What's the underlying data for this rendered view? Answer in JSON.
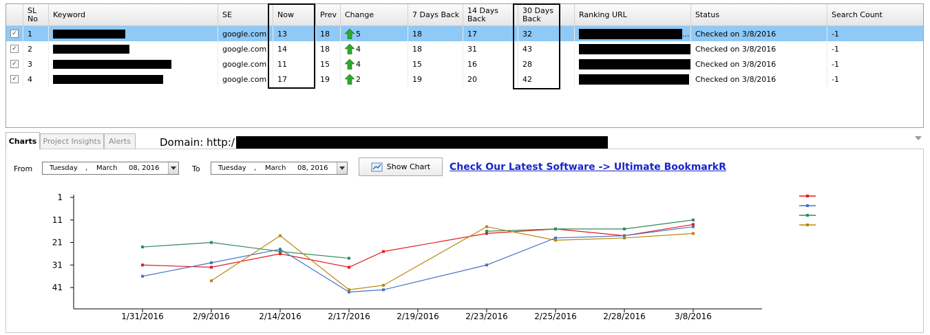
{
  "grid": {
    "columns": [
      {
        "key": "check",
        "label": ""
      },
      {
        "key": "sl",
        "label": "SL No"
      },
      {
        "key": "keyword",
        "label": "Keyword"
      },
      {
        "key": "se",
        "label": "SE"
      },
      {
        "key": "now",
        "label": "Now"
      },
      {
        "key": "prev",
        "label": "Prev"
      },
      {
        "key": "change",
        "label": "Change"
      },
      {
        "key": "d7",
        "label": "7 Days Back"
      },
      {
        "key": "d14",
        "label": "14 Days Back"
      },
      {
        "key": "d30",
        "label": "30 Days Back"
      },
      {
        "key": "url",
        "label": "Ranking URL"
      },
      {
        "key": "status",
        "label": "Status"
      },
      {
        "key": "search_count",
        "label": "Search Count"
      }
    ],
    "rows": [
      {
        "checked": true,
        "selected": true,
        "sl": "1",
        "se": "google.com",
        "now": "13",
        "prev": "18",
        "change": "5",
        "d7": "18",
        "d14": "17",
        "d30": "32",
        "url_suffix": "...",
        "status": "Checked on 3/8/2016",
        "search_count": "-1"
      },
      {
        "checked": true,
        "selected": false,
        "sl": "2",
        "se": "google.com",
        "now": "14",
        "prev": "18",
        "change": "4",
        "d7": "18",
        "d14": "31",
        "d30": "43",
        "url_suffix": "",
        "status": "Checked on 3/8/2016",
        "search_count": "-1"
      },
      {
        "checked": true,
        "selected": false,
        "sl": "3",
        "se": "google.com",
        "now": "11",
        "prev": "15",
        "change": "4",
        "d7": "15",
        "d14": "16",
        "d30": "28",
        "url_suffix": "",
        "status": "Checked on 3/8/2016",
        "search_count": "-1"
      },
      {
        "checked": true,
        "selected": false,
        "sl": "4",
        "se": "google.com",
        "now": "17",
        "prev": "19",
        "change": "2",
        "d7": "19",
        "d14": "20",
        "d30": "42",
        "url_suffix": "",
        "status": "Checked on 3/8/2016",
        "search_count": "-1"
      }
    ],
    "check_glyph": "✓",
    "change_arrow_color": "#2fa82f"
  },
  "tabs": [
    {
      "label": "Charts",
      "active": true
    },
    {
      "label": "Project Insights",
      "active": false
    },
    {
      "label": "Alerts",
      "active": false
    }
  ],
  "domain_label": "Domain: http:/",
  "filter": {
    "from_label": "From",
    "to_label": "To",
    "from_date": {
      "weekday": "Tuesday",
      "sep": ",",
      "month": "March",
      "day_year": "08, 2016"
    },
    "to_date": {
      "weekday": "Tuesday",
      "sep": ",",
      "month": "March",
      "day_year": "08, 2016"
    },
    "show_chart_label": "Show Chart",
    "promo_link": "Check Our Latest Software -> Ultimate BookmarkR"
  },
  "chart_data": {
    "type": "line",
    "title": "",
    "xlabel": "",
    "ylabel": "",
    "y_inverted": true,
    "ylim": [
      1,
      41
    ],
    "yticks": [
      "1",
      "11",
      "21",
      "31",
      "41"
    ],
    "categories": [
      "1/31/2016",
      "2/9/2016",
      "2/14/2016",
      "2/17/2016",
      "2/19/2016",
      "2/23/2016",
      "2/25/2016",
      "2/28/2016",
      "3/8/2016"
    ],
    "legend_position": "top-right",
    "series": [
      {
        "color": "#e31a1c",
        "values": [
          31,
          32,
          26,
          32,
          null,
          17,
          15,
          18,
          13
        ],
        "extra": {
          "between": [
            3,
            4
          ],
          "value": 25
        }
      },
      {
        "color": "#4472c4",
        "values": [
          36,
          30,
          24,
          43,
          null,
          31,
          19,
          18,
          14
        ],
        "extra": {
          "between": [
            3,
            4
          ],
          "value": 42
        }
      },
      {
        "color": "#2e8b57",
        "values": [
          23,
          21,
          25,
          28,
          null,
          16,
          15,
          15,
          11
        ],
        "extra": null
      },
      {
        "color": "#b8860b",
        "values": [
          null,
          38,
          18,
          42,
          null,
          14,
          20,
          19,
          17
        ],
        "extra": {
          "between": [
            3,
            4
          ],
          "value": 40
        }
      }
    ]
  }
}
